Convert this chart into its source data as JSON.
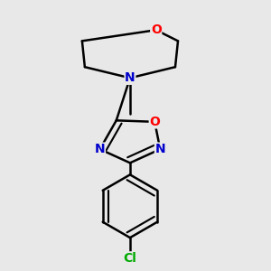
{
  "background_color": "#e8e8e8",
  "bond_color": "#000000",
  "bond_width": 1.8,
  "atom_colors": {
    "O": "#ff0000",
    "N": "#0000cc",
    "Cl": "#00aa00"
  },
  "font_size": 10
}
